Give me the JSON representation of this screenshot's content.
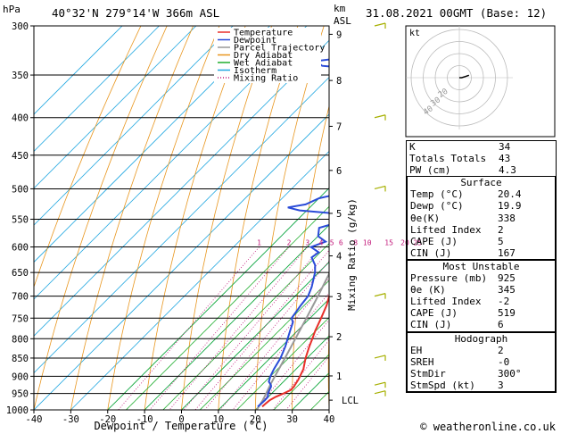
{
  "header": {
    "hpa_label": "hPa",
    "location": "40°32'N  279°14'W  366m  ASL",
    "km_label": "km",
    "asl_label": "ASL",
    "datetime": "31.08.2021  00GMT  (Base: 12)"
  },
  "legend": {
    "items": [
      {
        "label": "Temperature",
        "color": "#e8302a",
        "style": "solid"
      },
      {
        "label": "Dewpoint",
        "color": "#2a4bd8",
        "style": "solid"
      },
      {
        "label": "Parcel Trajectory",
        "color": "#999999",
        "style": "solid"
      },
      {
        "label": "Dry Adiabat",
        "color": "#e8961e",
        "style": "solid"
      },
      {
        "label": "Wet Adiabat",
        "color": "#1fae2e",
        "style": "solid"
      },
      {
        "label": "Isotherm",
        "color": "#21a7e0",
        "style": "solid"
      },
      {
        "label": "Mixing Ratio",
        "color": "#c2187a",
        "style": "dotted"
      }
    ]
  },
  "chart_data": {
    "type": "line",
    "xlabel": "Dewpoint / Temperature (°C)",
    "ylabel_right": "Mixing Ratio (g/kg)",
    "xlim": [
      -40,
      40
    ],
    "x_ticks": [
      -40,
      -30,
      -20,
      -10,
      0,
      10,
      20,
      30,
      40
    ],
    "pressure_levels": [
      300,
      350,
      400,
      450,
      500,
      550,
      600,
      650,
      700,
      750,
      800,
      850,
      900,
      950,
      1000
    ],
    "km_ticks": [
      {
        "label": "9",
        "p": 308
      },
      {
        "label": "8",
        "p": 356
      },
      {
        "label": "7",
        "p": 411
      },
      {
        "label": "6",
        "p": 472
      },
      {
        "label": "5",
        "p": 540
      },
      {
        "label": "4",
        "p": 617
      },
      {
        "label": "3",
        "p": 701
      },
      {
        "label": "2",
        "p": 795
      },
      {
        "label": "1",
        "p": 899
      }
    ],
    "lcl": {
      "label": "LCL",
      "p": 970
    },
    "mixing_ratio_labels": [
      "1",
      "2",
      "3",
      "4",
      "5",
      "6",
      "8",
      "10",
      "15",
      "20",
      "25"
    ],
    "mixing_ratio_values": [
      1,
      2,
      3,
      4,
      5,
      6,
      8,
      10,
      15,
      20,
      25
    ],
    "temperature": {
      "name": "Temperature",
      "p": [
        990,
        980,
        970,
        960,
        950,
        940,
        930,
        925,
        910,
        900,
        880,
        850,
        820,
        800,
        780,
        750,
        720,
        700,
        680,
        650,
        620,
        600,
        580,
        550,
        520,
        500,
        480,
        450,
        420,
        400,
        380,
        350,
        320,
        300
      ],
      "t": [
        21.0,
        21.1,
        21.3,
        22.0,
        23.2,
        24.2,
        24.2,
        24.0,
        23.5,
        23.0,
        22.0,
        19.6,
        17.5,
        16.2,
        14.8,
        13.0,
        11.0,
        9.2,
        7.8,
        5.5,
        3.0,
        1.2,
        -0.5,
        -3.5,
        -7.0,
        -9.2,
        -11.2,
        -15.0,
        -19.0,
        -21.5,
        -25.0,
        -31.5,
        -38.0,
        -42.5
      ]
    },
    "dewpoint": {
      "name": "Dewpoint",
      "p": [
        990,
        980,
        970,
        960,
        950,
        940,
        930,
        925,
        915,
        900,
        880,
        850,
        820,
        800,
        780,
        760,
        750,
        720,
        700,
        680,
        650,
        635,
        620,
        610,
        600,
        590,
        580,
        565,
        550,
        540,
        535,
        530,
        525,
        515,
        505,
        500,
        490,
        480,
        460,
        450,
        440,
        430,
        420,
        400,
        385,
        375,
        365,
        355,
        345,
        340,
        335,
        330,
        325,
        320,
        315,
        310,
        305,
        300
      ],
      "t": [
        19.8,
        19.9,
        20.0,
        19.9,
        19.0,
        18.5,
        18.0,
        17.5,
        16.0,
        15.0,
        14.0,
        12.8,
        11.0,
        9.5,
        8.0,
        6.5,
        5.0,
        4.0,
        3.5,
        2.0,
        -1.0,
        -3.0,
        -6.0,
        -5.5,
        -9.0,
        -6.5,
        -10.0,
        -12.0,
        -6.0,
        -12.0,
        -22.0,
        -26.0,
        -22.0,
        -20.0,
        -14.0,
        -13.5,
        -13.0,
        -13.0,
        -14.0,
        -17.0,
        -21.0,
        -21.5,
        -27.0,
        -29.0,
        -29.0,
        -31.0,
        -31.5,
        -31.0,
        -40.0,
        -55.0,
        -58.0,
        -48.0,
        -36.0,
        -35.0,
        -43.0,
        -35.0,
        -36.0,
        -38.0
      ]
    },
    "parcel": {
      "name": "Parcel Trajectory",
      "p": [
        1000,
        970,
        950,
        925,
        900,
        850,
        800,
        750,
        700,
        650,
        600,
        550,
        500,
        450,
        400,
        350,
        300
      ],
      "t": [
        20.4,
        19.4,
        18.5,
        17.3,
        16.2,
        14.0,
        11.6,
        9.0,
        6.2,
        3.0,
        -0.6,
        -4.8,
        -9.8,
        -15.8,
        -22.8,
        -31.2,
        -41.2
      ]
    }
  },
  "hodograph": {
    "kt_label": "kt",
    "ring_labels": [
      "10",
      "20",
      "30",
      "40"
    ],
    "wind_u": [
      2,
      5,
      8
    ],
    "wind_v": [
      0,
      1,
      2
    ]
  },
  "winds": {
    "p": [
      300,
      400,
      500,
      700,
      850,
      925,
      950
    ],
    "color": "#a6b000"
  },
  "indices": {
    "top": [
      {
        "label": "K",
        "value": "34"
      },
      {
        "label": "Totals Totals",
        "value": "43"
      },
      {
        "label": "PW (cm)",
        "value": "4.3"
      }
    ],
    "surface": {
      "title": "Surface",
      "rows": [
        {
          "label": "Temp (°C)",
          "value": "20.4"
        },
        {
          "label": "Dewp (°C)",
          "value": "19.9"
        },
        {
          "label": "θe(K)",
          "value": "338"
        },
        {
          "label": "Lifted Index",
          "value": "2"
        },
        {
          "label": "CAPE (J)",
          "value": "5"
        },
        {
          "label": "CIN (J)",
          "value": "167"
        }
      ]
    },
    "most_unstable": {
      "title": "Most Unstable",
      "rows": [
        {
          "label": "Pressure (mb)",
          "value": "925"
        },
        {
          "label": "θe (K)",
          "value": "345"
        },
        {
          "label": "Lifted Index",
          "value": "-2"
        },
        {
          "label": "CAPE (J)",
          "value": "519"
        },
        {
          "label": "CIN (J)",
          "value": "6"
        }
      ]
    },
    "hodograph_box": {
      "title": "Hodograph",
      "rows": [
        {
          "label": "EH",
          "value": "2"
        },
        {
          "label": "SREH",
          "value": "-0"
        },
        {
          "label": "StmDir",
          "value": "300°"
        },
        {
          "label": "StmSpd (kt)",
          "value": "3"
        }
      ]
    }
  },
  "copyright": "© weatheronline.co.uk"
}
